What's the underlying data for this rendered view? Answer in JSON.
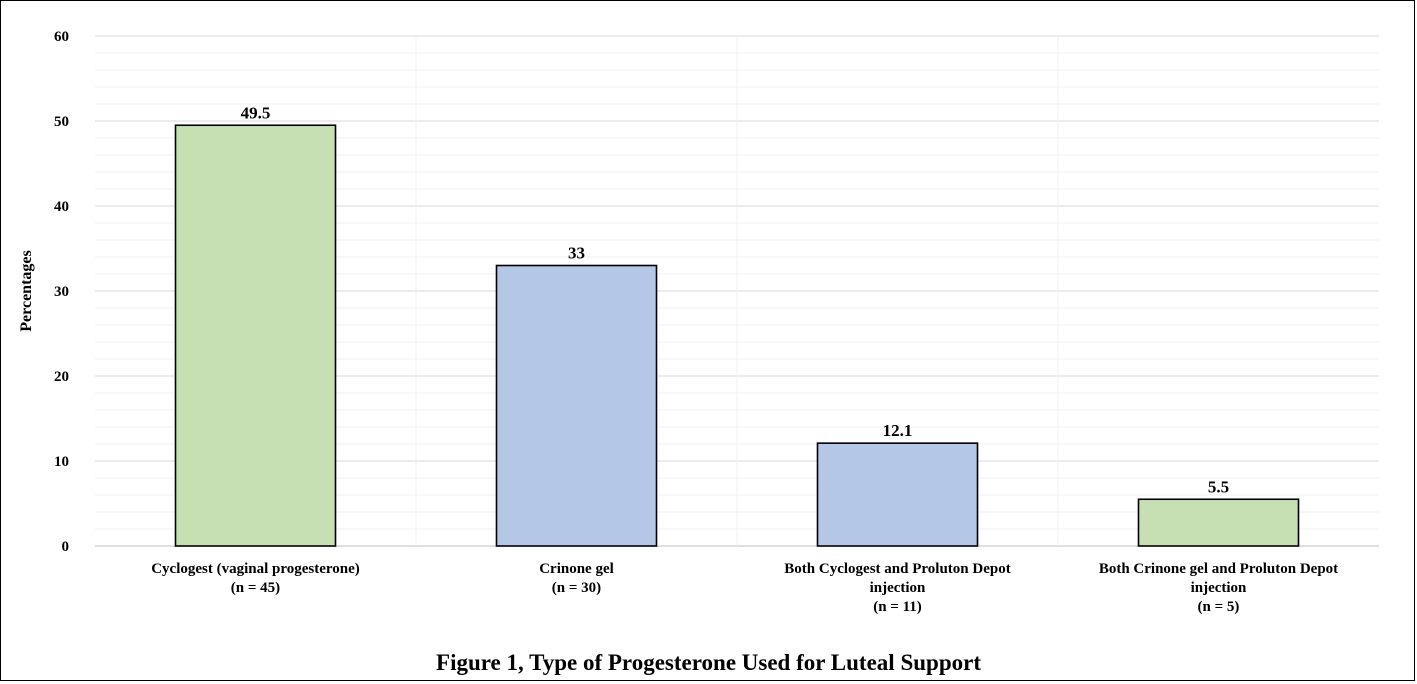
{
  "figure": {
    "caption": "Figure 1, Type of Progesterone Used for Luteal Support"
  },
  "chart_data": {
    "type": "bar",
    "categories": [
      [
        "Cyclogest (vaginal progesterone)",
        "(n = 45)"
      ],
      [
        "Crinone gel",
        "(n = 30)"
      ],
      [
        "Both Cyclogest and Proluton Depot",
        "injection",
        "(n = 11)"
      ],
      [
        "Both Crinone gel and Proluton Depot",
        "injection",
        "(n = 5)"
      ]
    ],
    "values": [
      49.5,
      33,
      12.1,
      5.5
    ],
    "data_labels": [
      "49.5",
      "33",
      "12.1",
      "5.5"
    ],
    "bar_colors": [
      "#c6e0b4",
      "#b4c7e7",
      "#b4c7e7",
      "#c6e0b4"
    ],
    "ylabel": "Percentages",
    "xlabel": "",
    "ylim": [
      0,
      60
    ],
    "yticks": [
      0,
      10,
      20,
      30,
      40,
      50,
      60
    ],
    "grid": true,
    "legend": "none"
  }
}
